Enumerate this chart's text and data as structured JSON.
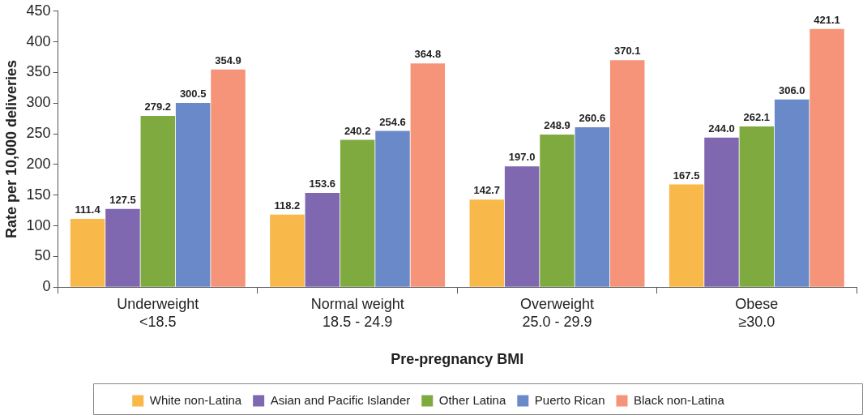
{
  "chart_data": {
    "type": "bar",
    "xlabel": "Pre-pregnancy BMI",
    "ylabel": "Rate per 10,000 deliveries",
    "categories": [
      "Underweight\n<18.5",
      "Normal weight\n18.5 - 24.9",
      "Overweight\n25.0 - 29.9",
      "Obese\n≥30.0"
    ],
    "series": [
      {
        "name": "White non-Latina",
        "color": "#f9b84a",
        "values": [
          111.4,
          118.2,
          142.7,
          167.5
        ],
        "value_labels": [
          "111.4",
          "118.2",
          "142.7",
          "167.5"
        ]
      },
      {
        "name": "Asian and Pacific Islander",
        "color": "#7f68b0",
        "values": [
          127.5,
          153.6,
          197.0,
          244.0
        ],
        "value_labels": [
          "127.5",
          "153.6",
          "197.0",
          "244.0"
        ]
      },
      {
        "name": "Other Latina",
        "color": "#7faa3f",
        "values": [
          279.2,
          240.2,
          248.9,
          262.1
        ],
        "value_labels": [
          "279.2",
          "240.2",
          "248.9",
          "262.1"
        ]
      },
      {
        "name": "Puerto Rican",
        "color": "#6a89c8",
        "values": [
          300.5,
          254.6,
          260.6,
          306.0
        ],
        "value_labels": [
          "300.5",
          "254.6",
          "260.6",
          "306.0"
        ]
      },
      {
        "name": "Black non-Latina",
        "color": "#f59478",
        "values": [
          354.9,
          364.8,
          370.1,
          421.1
        ],
        "value_labels": [
          "354.9",
          "364.8",
          "370.1",
          "421.1"
        ]
      }
    ],
    "ylim": [
      0,
      450
    ],
    "yticks": [
      0,
      50,
      100,
      150,
      200,
      250,
      300,
      350,
      400,
      450
    ],
    "grid": false,
    "legend": "bottom"
  }
}
